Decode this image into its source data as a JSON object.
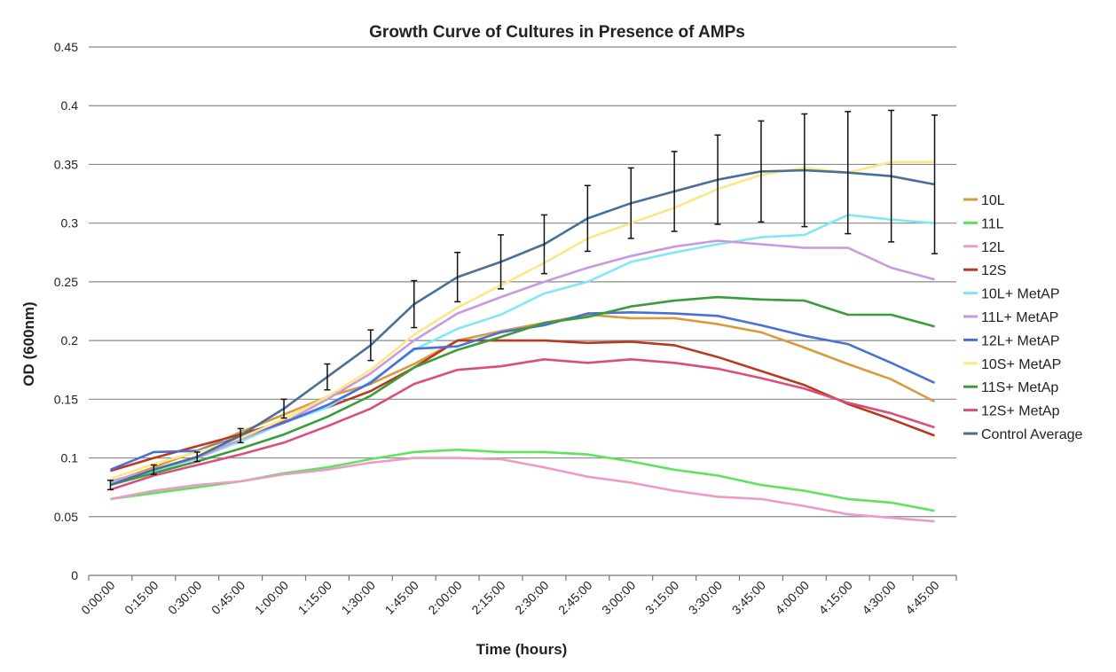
{
  "chart_data": {
    "type": "line",
    "title": "Growth Curve of Cultures in Presence of AMPs",
    "xlabel": "Time (hours)",
    "ylabel": "OD (600nm)",
    "ylim": [
      0,
      0.45
    ],
    "yticks": [
      0,
      0.05,
      0.1,
      0.15,
      0.2,
      0.25,
      0.3,
      0.35,
      0.4,
      0.45
    ],
    "ytick_labels": [
      "0",
      "0.05",
      "0.1",
      "0.15",
      "0.2",
      "0.25",
      "0.3",
      "0.35",
      "0.4",
      "0.45"
    ],
    "grid": "horizontal",
    "legend": "right",
    "categories": [
      "0:00:00",
      "0:15:00",
      "0:30:00",
      "0:45:00",
      "1:00:00",
      "1:15:00",
      "1:30:00",
      "1:45:00",
      "2:00:00",
      "2:15:00",
      "2:30:00",
      "2:45:00",
      "3:00:00",
      "3:15:00",
      "3:30:00",
      "3:45:00",
      "4:00:00",
      "4:15:00",
      "4:30:00",
      "4:45:00"
    ],
    "series": [
      {
        "name": "10L",
        "color": "#d89a3c",
        "values": [
          0.079,
          0.092,
          0.106,
          0.122,
          0.137,
          0.152,
          0.163,
          0.18,
          0.2,
          0.208,
          0.215,
          0.222,
          0.219,
          0.219,
          0.214,
          0.207,
          0.194,
          0.18,
          0.167,
          0.148
        ]
      },
      {
        "name": "11L",
        "color": "#5fe35f",
        "values": [
          0.065,
          0.07,
          0.075,
          0.08,
          0.087,
          0.092,
          0.099,
          0.105,
          0.107,
          0.105,
          0.105,
          0.103,
          0.097,
          0.09,
          0.085,
          0.077,
          0.072,
          0.065,
          0.062,
          0.055
        ]
      },
      {
        "name": "12L",
        "color": "#ec9bc6",
        "values": [
          0.065,
          0.072,
          0.077,
          0.08,
          0.086,
          0.09,
          0.096,
          0.1,
          0.1,
          0.099,
          0.092,
          0.084,
          0.079,
          0.072,
          0.067,
          0.065,
          0.059,
          0.052,
          0.049,
          0.046
        ]
      },
      {
        "name": "12S",
        "color": "#b83a1e",
        "values": [
          0.089,
          0.1,
          0.11,
          0.12,
          0.131,
          0.143,
          0.157,
          0.177,
          0.2,
          0.2,
          0.2,
          0.198,
          0.199,
          0.196,
          0.186,
          0.174,
          0.162,
          0.146,
          0.133,
          0.119
        ]
      },
      {
        "name": "10L+ MetAP",
        "color": "#7fe8f5",
        "values": [
          0.078,
          0.088,
          0.1,
          0.114,
          0.13,
          0.143,
          0.165,
          0.192,
          0.21,
          0.222,
          0.24,
          0.25,
          0.267,
          0.275,
          0.282,
          0.288,
          0.29,
          0.307,
          0.303,
          0.3
        ]
      },
      {
        "name": "11L+ MetAP",
        "color": "#c79ae0",
        "values": [
          0.08,
          0.09,
          0.1,
          0.116,
          0.13,
          0.15,
          0.172,
          0.2,
          0.223,
          0.237,
          0.25,
          0.262,
          0.272,
          0.28,
          0.285,
          0.282,
          0.279,
          0.279,
          0.262,
          0.252
        ]
      },
      {
        "name": "12L+ MetAP",
        "color": "#4a6fd6",
        "values": [
          0.09,
          0.105,
          0.106,
          0.118,
          0.13,
          0.145,
          0.164,
          0.193,
          0.195,
          0.207,
          0.213,
          0.223,
          0.224,
          0.223,
          0.221,
          0.213,
          0.204,
          0.197,
          0.181,
          0.164
        ]
      },
      {
        "name": "10S+ MetAP",
        "color": "#fbe884",
        "values": [
          0.082,
          0.095,
          0.105,
          0.117,
          0.133,
          0.152,
          0.175,
          0.205,
          0.228,
          0.247,
          0.266,
          0.287,
          0.3,
          0.313,
          0.329,
          0.341,
          0.347,
          0.343,
          0.352,
          0.352
        ]
      },
      {
        "name": "11S+ MetAp",
        "color": "#3a9d3a",
        "values": [
          0.077,
          0.087,
          0.097,
          0.108,
          0.12,
          0.135,
          0.153,
          0.177,
          0.192,
          0.203,
          0.215,
          0.22,
          0.229,
          0.234,
          0.237,
          0.235,
          0.234,
          0.222,
          0.222,
          0.212
        ]
      },
      {
        "name": "12S+ MetAp",
        "color": "#db4d7c",
        "values": [
          0.073,
          0.085,
          0.094,
          0.103,
          0.113,
          0.127,
          0.142,
          0.163,
          0.175,
          0.178,
          0.184,
          0.181,
          0.184,
          0.181,
          0.176,
          0.168,
          0.159,
          0.147,
          0.138,
          0.126
        ]
      },
      {
        "name": "Control Average",
        "color": "#4a6f96",
        "values": [
          0.077,
          0.09,
          0.101,
          0.119,
          0.142,
          0.169,
          0.196,
          0.231,
          0.254,
          0.267,
          0.282,
          0.304,
          0.317,
          0.327,
          0.337,
          0.344,
          0.345,
          0.343,
          0.34,
          0.333
        ],
        "error": [
          0.004,
          0.004,
          0.004,
          0.006,
          0.008,
          0.011,
          0.013,
          0.02,
          0.021,
          0.023,
          0.025,
          0.028,
          0.03,
          0.034,
          0.038,
          0.043,
          0.048,
          0.052,
          0.056,
          0.059
        ]
      }
    ]
  }
}
